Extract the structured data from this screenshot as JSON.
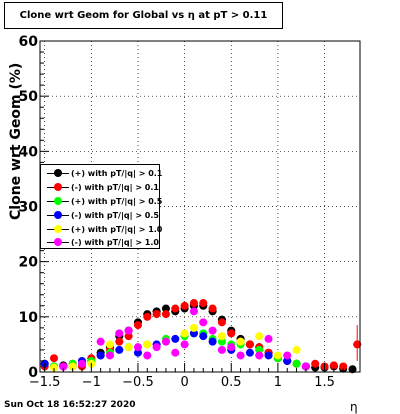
{
  "title": "Clone wrt Geom for Global vs   η at pT > 0.11",
  "footer_date": "Sun Oct 18 16:52:27 2020",
  "colors": {
    "black": "#000000",
    "red": "#ff0000",
    "green": "#00ff00",
    "blue": "#0000ff",
    "yellow": "#ffff00",
    "magenta": "#ff00ff"
  },
  "chart_data": {
    "type": "scatter",
    "title": "Clone wrt Geom for Global vs   η at pT > 0.11",
    "xlabel": "η",
    "ylabel": "Clone wrt Geom (%)",
    "xlim": [
      -1.55,
      1.88
    ],
    "ylim": [
      0,
      60
    ],
    "grid": true,
    "legend_position": "middle-left",
    "xticks": [
      -1.5,
      -1,
      -0.5,
      0,
      0.5,
      1,
      1.5
    ],
    "xtick_labels": [
      "−1.5",
      "−1",
      "−0.5",
      "0",
      "0.5",
      "1",
      "1.5"
    ],
    "yticks": [
      0,
      10,
      20,
      30,
      40,
      50,
      60
    ],
    "ytick_labels": [
      "0",
      "10",
      "20",
      "30",
      "40",
      "50",
      "60"
    ],
    "series": [
      {
        "name": "(+) with pT/|q| > 0.1",
        "color": "#000000",
        "x": [
          -1.5,
          -1.4,
          -1.3,
          -1.2,
          -1.1,
          -1.0,
          -0.9,
          -0.8,
          -0.7,
          -0.6,
          -0.5,
          -0.4,
          -0.3,
          -0.2,
          -0.1,
          0.0,
          0.1,
          0.2,
          0.3,
          0.4,
          0.5,
          0.6,
          0.7,
          0.8,
          0.9,
          1.0,
          1.1,
          1.2,
          1.3,
          1.4,
          1.5,
          1.6,
          1.7,
          1.8
        ],
        "y": [
          1.5,
          1.0,
          1.2,
          1.0,
          1.5,
          2.0,
          3.5,
          4.5,
          6.5,
          7.5,
          9.0,
          10.5,
          11.0,
          11.5,
          11.0,
          11.5,
          12.0,
          12.0,
          11.0,
          9.5,
          7.5,
          6.0,
          5.0,
          4.5,
          3.5,
          2.5,
          2.0,
          1.5,
          1.0,
          0.8,
          0.8,
          1.0,
          0.6,
          0.5
        ]
      },
      {
        "name": "(-) with pT/|q| > 0.1",
        "color": "#ff0000",
        "x": [
          -1.5,
          -1.4,
          -1.3,
          -1.2,
          -1.1,
          -1.0,
          -0.9,
          -0.8,
          -0.7,
          -0.6,
          -0.5,
          -0.4,
          -0.3,
          -0.2,
          -0.1,
          0.0,
          0.1,
          0.2,
          0.3,
          0.4,
          0.5,
          0.6,
          0.7,
          0.8,
          0.9,
          1.0,
          1.1,
          1.2,
          1.3,
          1.4,
          1.5,
          1.6,
          1.7,
          1.85
        ],
        "y": [
          1.0,
          2.5,
          1.0,
          1.5,
          1.0,
          2.5,
          3.0,
          4.0,
          5.5,
          6.5,
          8.5,
          10.0,
          10.5,
          10.5,
          11.5,
          12.0,
          12.5,
          12.5,
          11.5,
          9.0,
          7.0,
          5.5,
          5.0,
          4.5,
          3.5,
          2.5,
          2.0,
          1.5,
          1.0,
          1.5,
          1.0,
          1.2,
          1.0,
          5.0
        ]
      },
      {
        "name": "(+) with pT/|q| > 0.5",
        "color": "#00ff00",
        "x": [
          -1.4,
          -1.2,
          -1.0,
          -0.8,
          -0.6,
          -0.4,
          -0.2,
          0.0,
          0.1,
          0.2,
          0.3,
          0.4,
          0.5,
          0.6,
          0.8,
          1.0,
          1.2
        ],
        "y": [
          1.0,
          1.5,
          2.0,
          3.5,
          4.5,
          5.0,
          6.0,
          6.5,
          7.0,
          7.0,
          6.0,
          5.5,
          5.0,
          5.0,
          4.0,
          2.5,
          1.5
        ]
      },
      {
        "name": "(-) with pT/|q| > 0.5",
        "color": "#0000ff",
        "x": [
          -1.5,
          -1.3,
          -1.1,
          -0.9,
          -0.7,
          -0.5,
          -0.3,
          -0.1,
          0.1,
          0.2,
          0.3,
          0.5,
          0.7,
          0.9,
          1.1,
          1.3
        ],
        "y": [
          1.5,
          1.0,
          2.0,
          3.0,
          4.0,
          3.5,
          5.0,
          6.0,
          7.0,
          6.5,
          5.5,
          4.0,
          3.5,
          3.0,
          2.0,
          1.0
        ]
      },
      {
        "name": "(+) with pT/|q| > 1.0",
        "color": "#ffff00",
        "x": [
          -1.4,
          -1.2,
          -1.0,
          -0.8,
          -0.6,
          -0.4,
          -0.2,
          0.0,
          0.1,
          0.2,
          0.4,
          0.6,
          0.8,
          1.0,
          1.2
        ],
        "y": [
          0.8,
          1.0,
          1.5,
          5.0,
          4.5,
          5.0,
          5.5,
          7.0,
          8.0,
          9.0,
          6.5,
          5.5,
          6.5,
          3.0,
          4.0
        ]
      },
      {
        "name": "(-) with pT/|q| > 1.0",
        "color": "#ff00ff",
        "x": [
          -1.3,
          -1.1,
          -0.9,
          -0.8,
          -0.7,
          -0.6,
          -0.5,
          -0.4,
          -0.3,
          -0.2,
          -0.1,
          0.0,
          0.1,
          0.2,
          0.3,
          0.4,
          0.5,
          0.6,
          0.8,
          0.9,
          1.1,
          1.3
        ],
        "y": [
          1.0,
          1.5,
          5.5,
          3.0,
          7.0,
          7.5,
          4.5,
          3.0,
          4.5,
          5.5,
          3.5,
          5.0,
          11.0,
          9.0,
          7.5,
          4.0,
          4.5,
          3.0,
          3.0,
          6.0,
          3.0,
          1.0
        ]
      }
    ]
  }
}
